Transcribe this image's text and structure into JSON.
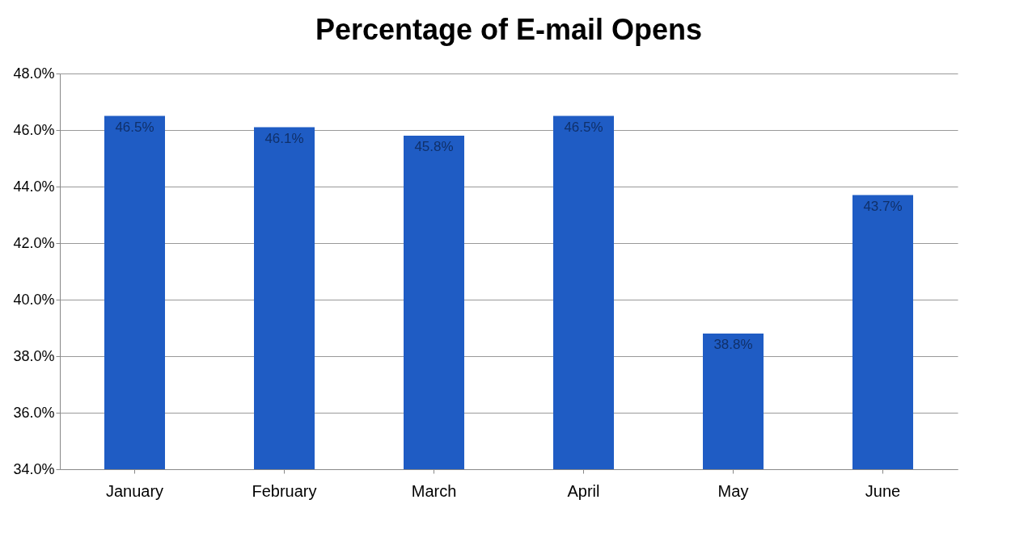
{
  "chart_data": {
    "type": "bar",
    "title": "Percentage of E-mail Opens",
    "categories": [
      "January",
      "February",
      "March",
      "April",
      "May",
      "June"
    ],
    "values": [
      46.5,
      46.1,
      45.8,
      46.5,
      38.8,
      43.7
    ],
    "value_labels": [
      "46.5%",
      "46.1%",
      "45.8%",
      "46.5%",
      "38.8%",
      "43.7%"
    ],
    "color": "#1f5cc4",
    "ylim": [
      34,
      48
    ],
    "yticks": [
      {
        "value": 34,
        "label": "34.0%"
      },
      {
        "value": 36,
        "label": "36.0%"
      },
      {
        "value": 38,
        "label": "38.0%"
      },
      {
        "value": 40,
        "label": "40.0%"
      },
      {
        "value": 42,
        "label": "42.0%"
      },
      {
        "value": 44,
        "label": "44.0%"
      },
      {
        "value": 46,
        "label": "46.0%"
      },
      {
        "value": 48,
        "label": "48.0%"
      }
    ],
    "grid": "y",
    "legend": false
  }
}
